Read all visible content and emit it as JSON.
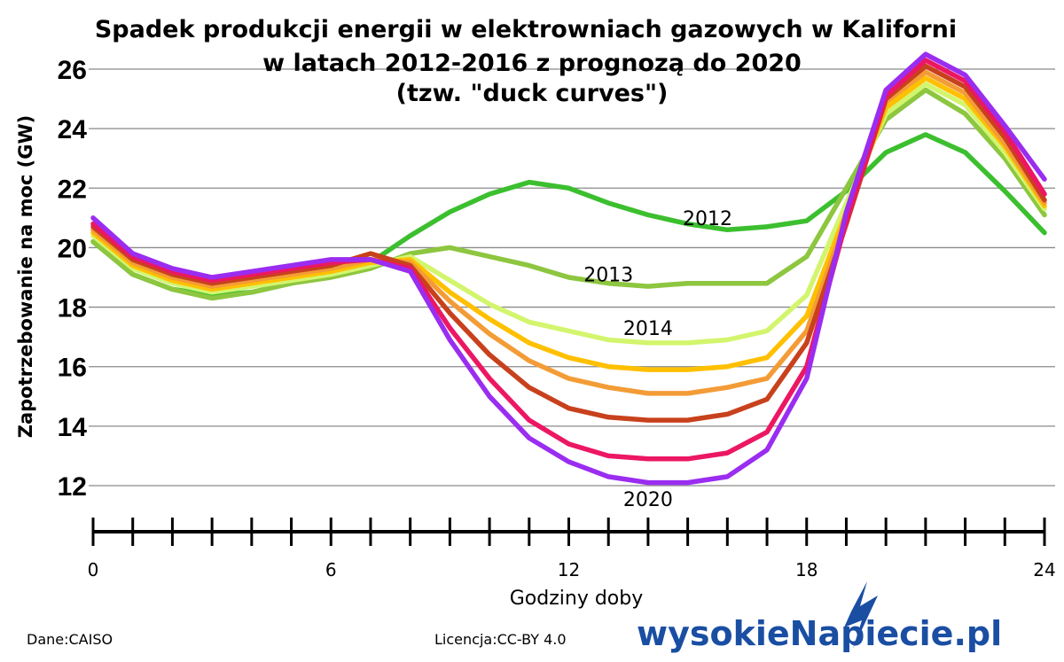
{
  "chart_data": {
    "type": "line",
    "title": "Spadek produkcji energii w elektrowniach gazowych w Kaliforni",
    "subtitle": "w latach 2012-2016 z prognozą do 2020",
    "subtitle2": "(tzw. \"duck curves\")",
    "xlabel": "Godziny doby",
    "ylabel": "Zapotrzebowanie na moc (GW)",
    "xlim": [
      0,
      24
    ],
    "ylim": [
      11.5,
      26.8
    ],
    "xticks": [
      0,
      6,
      12,
      18,
      24
    ],
    "yticks": [
      12,
      14,
      16,
      18,
      20,
      22,
      24,
      26
    ],
    "grid": "horizontal",
    "x": [
      0,
      1,
      2,
      3,
      4,
      5,
      6,
      7,
      8,
      9,
      10,
      11,
      12,
      13,
      14,
      15,
      16,
      17,
      18,
      19,
      20,
      21,
      22,
      23,
      24
    ],
    "series": [
      {
        "name": "2012",
        "color": "#3cbf2f",
        "values": [
          20.2,
          19.1,
          18.6,
          18.4,
          18.5,
          18.8,
          19.1,
          19.5,
          20.4,
          21.2,
          21.8,
          22.2,
          22.0,
          21.5,
          21.1,
          20.8,
          20.6,
          20.7,
          20.9,
          21.9,
          23.2,
          23.8,
          23.2,
          21.9,
          20.5
        ]
      },
      {
        "name": "2013",
        "color": "#8dc63f",
        "values": [
          20.2,
          19.1,
          18.6,
          18.3,
          18.5,
          18.8,
          19.0,
          19.3,
          19.8,
          20.0,
          19.7,
          19.4,
          19.0,
          18.8,
          18.7,
          18.8,
          18.8,
          18.8,
          19.7,
          22.0,
          24.3,
          25.3,
          24.5,
          23.0,
          21.1
        ]
      },
      {
        "name": "2014",
        "color": "#d3f56e",
        "values": [
          20.4,
          19.3,
          18.8,
          18.5,
          18.7,
          18.9,
          19.1,
          19.4,
          19.7,
          18.9,
          18.1,
          17.5,
          17.2,
          16.9,
          16.8,
          16.8,
          16.9,
          17.2,
          18.4,
          21.5,
          24.5,
          25.5,
          24.8,
          23.2,
          21.3
        ]
      },
      {
        "name": "",
        "color": "#ffc000",
        "values": [
          20.5,
          19.4,
          18.9,
          18.6,
          18.8,
          19.0,
          19.2,
          19.5,
          19.6,
          18.5,
          17.6,
          16.8,
          16.3,
          16.0,
          15.9,
          15.9,
          16.0,
          16.3,
          17.7,
          21.2,
          24.7,
          25.7,
          25.0,
          23.4,
          21.4
        ]
      },
      {
        "name": "",
        "color": "#f39c37",
        "values": [
          20.6,
          19.5,
          19.0,
          18.7,
          18.9,
          19.1,
          19.3,
          19.6,
          19.5,
          18.2,
          17.1,
          16.2,
          15.6,
          15.3,
          15.1,
          15.1,
          15.3,
          15.6,
          17.2,
          21.0,
          24.9,
          25.9,
          25.2,
          23.5,
          21.5
        ]
      },
      {
        "name": "",
        "color": "#c8411d",
        "values": [
          20.7,
          19.6,
          19.1,
          18.8,
          19.0,
          19.2,
          19.4,
          19.8,
          19.4,
          17.8,
          16.4,
          15.3,
          14.6,
          14.3,
          14.2,
          14.2,
          14.4,
          14.9,
          16.8,
          20.8,
          25.0,
          26.1,
          25.4,
          23.7,
          21.6
        ]
      },
      {
        "name": "",
        "color": "#ec1763",
        "values": [
          20.8,
          19.7,
          19.2,
          18.9,
          19.1,
          19.3,
          19.5,
          19.6,
          19.3,
          17.3,
          15.6,
          14.2,
          13.4,
          13.0,
          12.9,
          12.9,
          13.1,
          13.8,
          16.0,
          20.9,
          25.1,
          26.3,
          25.6,
          23.9,
          21.8
        ]
      },
      {
        "name": "2020",
        "color": "#9a2df0",
        "values": [
          21.0,
          19.8,
          19.3,
          19.0,
          19.2,
          19.4,
          19.6,
          19.6,
          19.2,
          16.9,
          15.0,
          13.6,
          12.8,
          12.3,
          12.1,
          12.1,
          12.3,
          13.2,
          15.6,
          21.2,
          25.3,
          26.5,
          25.8,
          24.1,
          22.3
        ]
      }
    ],
    "series_labels": [
      {
        "text": "2012",
        "x": 15.5,
        "y": 21.0
      },
      {
        "text": "2013",
        "x": 13.0,
        "y": 19.1
      },
      {
        "text": "2014",
        "x": 14.0,
        "y": 17.3
      },
      {
        "text": "2020",
        "x": 14.0,
        "y": 11.55
      }
    ]
  },
  "footer": {
    "source": "Dane:CAISO",
    "license": "Licencja:CC-BY 4.0",
    "brand": "wysokieNapiecie.pl"
  }
}
